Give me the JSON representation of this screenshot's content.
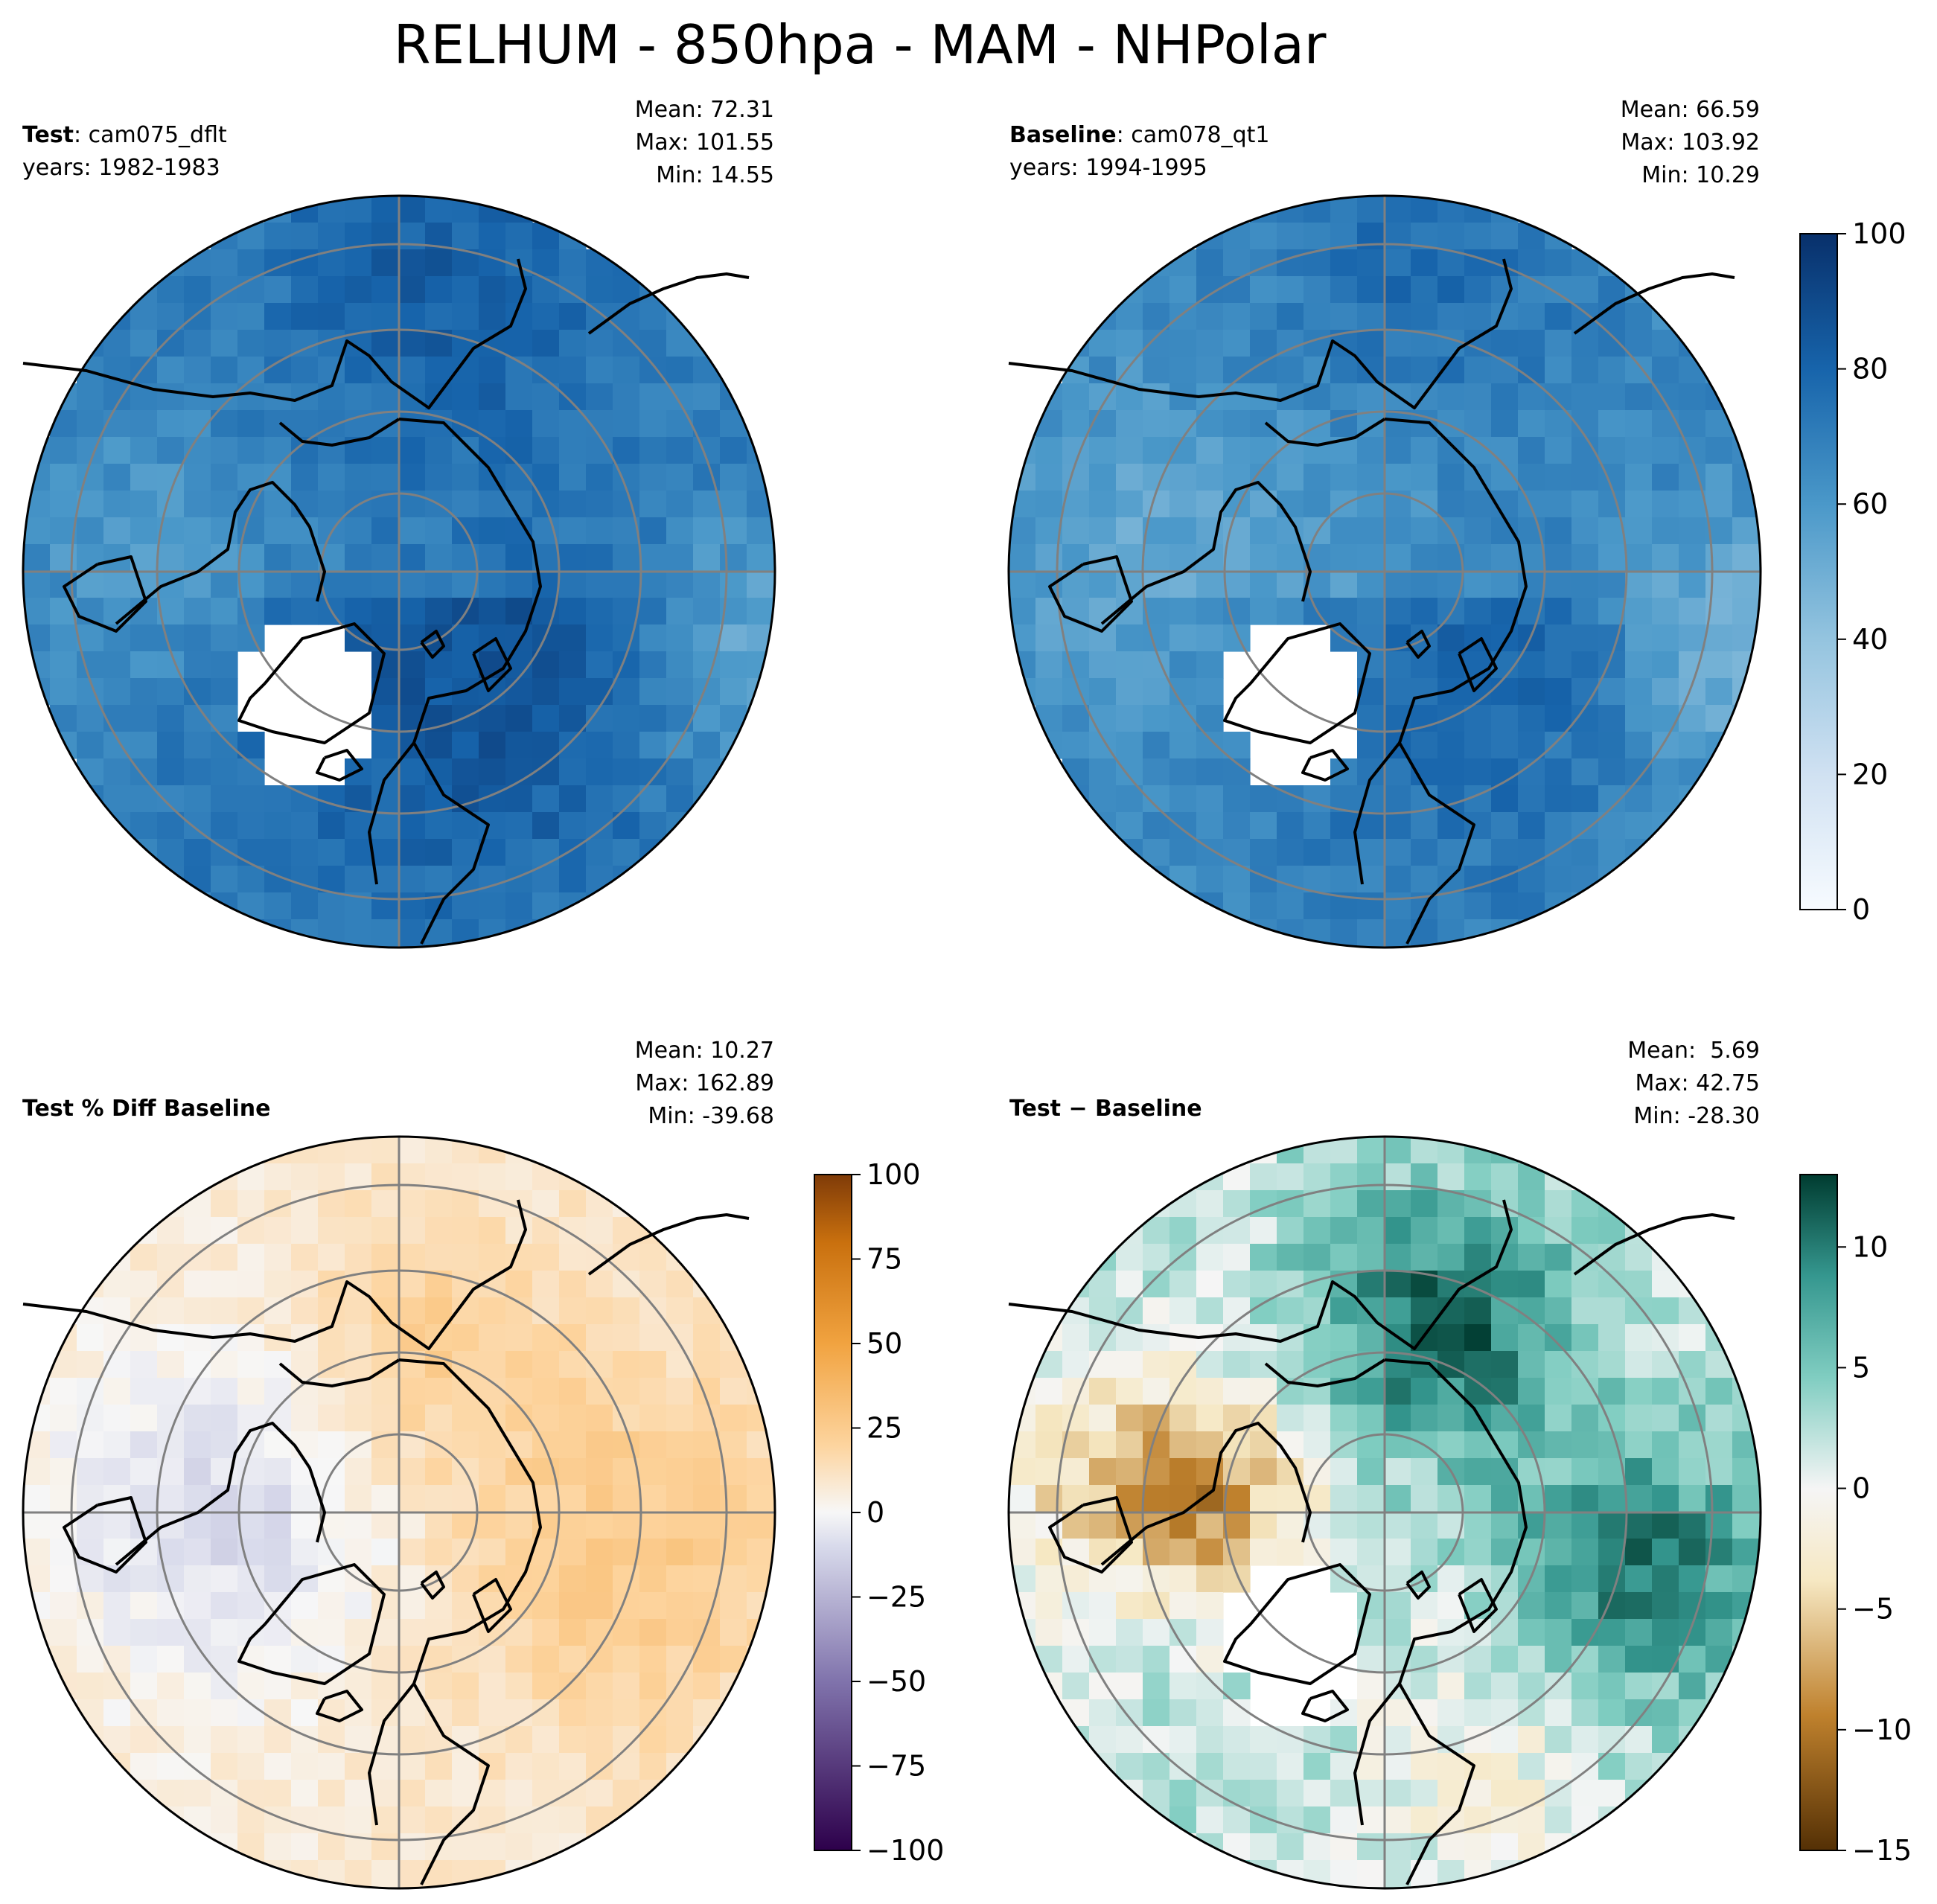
{
  "figure": {
    "title": "RELHUM - 850hpa - MAM - NHPolar"
  },
  "panels": [
    {
      "id": "test",
      "label_bold": "Test",
      "label_rest": ": cam075_dflt",
      "label_line2": "years: 1982-1983",
      "stats": {
        "mean": "Mean: 72.31",
        "max": "Max: 101.55",
        "min": "Min: 14.55"
      }
    },
    {
      "id": "baseline",
      "label_bold": "Baseline",
      "label_rest": ": cam078_qt1",
      "label_line2": "years: 1994-1995",
      "stats": {
        "mean": "Mean: 66.59",
        "max": "Max: 103.92",
        "min": "Min: 10.29"
      }
    },
    {
      "id": "pctdiff",
      "label_bold": "Test % Diff Baseline",
      "label_rest": "",
      "label_line2": "",
      "stats": {
        "mean": "Mean: 10.27",
        "max": "Max: 162.89",
        "min": "Min: -39.68"
      }
    },
    {
      "id": "diff",
      "label_bold": "Test − Baseline",
      "label_rest": "",
      "label_line2": "",
      "stats": {
        "mean": "Mean:  5.69",
        "max": "Max: 42.75",
        "min": "Min: -28.30"
      }
    }
  ],
  "chart_data": [
    {
      "type": "heatmap",
      "projection": "north-polar-stereographic",
      "panel": "test",
      "colormap": "Blues",
      "colorbar": "shared-with-baseline",
      "vrange": [
        0,
        100
      ],
      "mean": 72.31,
      "max": 101.55,
      "min": 14.55,
      "grid": true
    },
    {
      "type": "heatmap",
      "projection": "north-polar-stereographic",
      "panel": "baseline",
      "colormap": "Blues",
      "vrange": [
        0,
        100
      ],
      "colorbar_ticks": [
        "0",
        "20",
        "40",
        "60",
        "80",
        "100"
      ],
      "mean": 66.59,
      "max": 103.92,
      "min": 10.29,
      "grid": true
    },
    {
      "type": "heatmap",
      "projection": "north-polar-stereographic",
      "panel": "pctdiff",
      "colormap": "PuOr_r",
      "vrange": [
        -100,
        100
      ],
      "colorbar_ticks": [
        "100",
        "75",
        "50",
        "25",
        "0",
        "−25",
        "−50",
        "−75",
        "−100"
      ],
      "mean": 10.27,
      "max": 162.89,
      "min": -39.68,
      "grid": true
    },
    {
      "type": "heatmap",
      "projection": "north-polar-stereographic",
      "panel": "diff",
      "colormap": "BrBG",
      "vrange": [
        -15,
        13
      ],
      "colorbar_ticks": [
        "10",
        "5",
        "0",
        "−5",
        "−10",
        "−15"
      ],
      "mean": 5.69,
      "max": 42.75,
      "min": -28.3,
      "grid": true
    }
  ]
}
